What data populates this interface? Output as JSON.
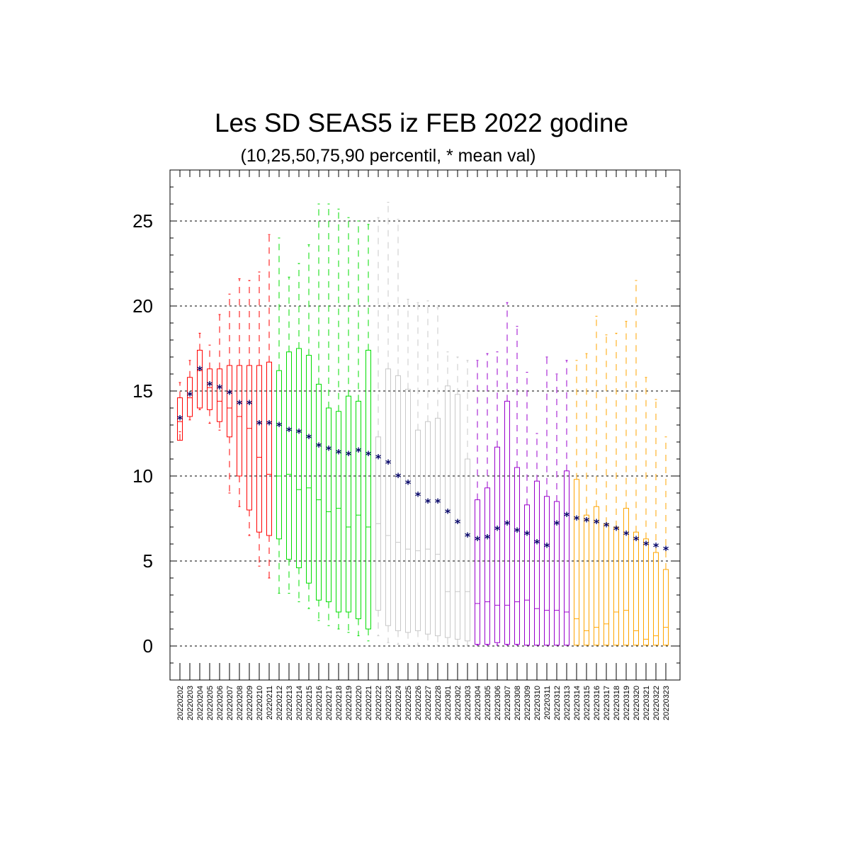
{
  "chart_data": {
    "type": "box",
    "title": "Les SD SEAS5 iz FEB 2022 godine",
    "subtitle": "(10,25,50,75,90 percentil, * mean val)",
    "xlabel": "",
    "ylabel": "",
    "ylim": [
      -2,
      28
    ],
    "yticks": [
      "0",
      "5",
      "10",
      "15",
      "20",
      "25"
    ],
    "grid": "horizontal-dashed",
    "mean_marker": "*",
    "mean_color": "#000066",
    "categories": [
      "20220202",
      "20220203",
      "20220204",
      "20220205",
      "20220206",
      "20220207",
      "20220208",
      "20220209",
      "20220210",
      "20220211",
      "20220212",
      "20220213",
      "20220214",
      "20220215",
      "20220216",
      "20220217",
      "20220218",
      "20220219",
      "20220220",
      "20220221",
      "20220222",
      "20220223",
      "20220224",
      "20220225",
      "20220226",
      "20220227",
      "20220228",
      "20220301",
      "20220302",
      "20220303",
      "20220304",
      "20220305",
      "20220306",
      "20220307",
      "20220308",
      "20220309",
      "20220310",
      "20220311",
      "20220312",
      "20220313",
      "20220314",
      "20220315",
      "20220316",
      "20220317",
      "20220318",
      "20220319",
      "20220320",
      "20220321",
      "20220322",
      "20220323"
    ],
    "colors": [
      "#ff0000",
      "#ff0000",
      "#ff0000",
      "#ff0000",
      "#ff0000",
      "#ff0000",
      "#ff0000",
      "#ff0000",
      "#ff0000",
      "#ff0000",
      "#00dd00",
      "#00dd00",
      "#00dd00",
      "#00dd00",
      "#00dd00",
      "#00dd00",
      "#00dd00",
      "#00dd00",
      "#00dd00",
      "#00dd00",
      "#c8c8c8",
      "#c8c8c8",
      "#c8c8c8",
      "#c8c8c8",
      "#c8c8c8",
      "#c8c8c8",
      "#c8c8c8",
      "#c8c8c8",
      "#c8c8c8",
      "#c8c8c8",
      "#9900cc",
      "#9900cc",
      "#9900cc",
      "#9900cc",
      "#9900cc",
      "#9900cc",
      "#9900cc",
      "#9900cc",
      "#9900cc",
      "#9900cc",
      "#ffa500",
      "#ffa500",
      "#ffa500",
      "#ffa500",
      "#ffa500",
      "#ffa500",
      "#ffa500",
      "#ffa500",
      "#ffa500",
      "#ffa500"
    ],
    "p10": [
      12.6,
      13.3,
      13.9,
      13.1,
      12.7,
      9.0,
      8.2,
      6.5,
      4.7,
      4.0,
      3.1,
      3.1,
      2.6,
      2.2,
      1.5,
      1.2,
      1.0,
      0.8,
      0.6,
      0.3,
      0.6,
      0.2,
      0.1,
      0.1,
      0.05,
      0.05,
      0.05,
      0.05,
      0.05,
      0.05,
      0.05,
      0.05,
      0.05,
      0.05,
      0.05,
      0.05,
      0.05,
      0.05,
      0.05,
      0.05,
      0.05,
      0.05,
      0.05,
      0.05,
      0.05,
      0.05,
      0.05,
      0.05,
      0.05,
      0.05
    ],
    "p25": [
      12.1,
      13.5,
      14.0,
      13.9,
      13.2,
      12.3,
      10.0,
      8.0,
      6.7,
      6.5,
      6.3,
      5.1,
      4.6,
      3.7,
      2.7,
      2.6,
      2.0,
      2.0,
      1.6,
      1.0,
      2.1,
      1.2,
      0.9,
      0.8,
      0.9,
      0.7,
      0.6,
      0.5,
      0.4,
      0.3,
      0.1,
      0.1,
      0.2,
      0.1,
      0.1,
      0.05,
      0.05,
      0.05,
      0.05,
      0.05,
      0.05,
      0.05,
      0.05,
      0.05,
      0.05,
      0.05,
      0.05,
      0.05,
      0.05,
      0.05
    ],
    "p50": [
      13.2,
      14.6,
      16.2,
      15.2,
      14.4,
      14.0,
      13.5,
      12.8,
      11.1,
      10.1,
      10.0,
      10.1,
      9.2,
      9.3,
      8.6,
      7.9,
      8.1,
      7.0,
      7.7,
      7.0,
      7.2,
      6.5,
      6.1,
      5.7,
      5.6,
      5.7,
      5.4,
      3.2,
      3.2,
      3.2,
      2.5,
      2.6,
      2.4,
      2.4,
      2.6,
      2.7,
      2.2,
      2.1,
      2.1,
      2.0,
      1.6,
      0.9,
      1.1,
      1.3,
      2.0,
      2.1,
      0.9,
      0.4,
      0.6,
      1.1
    ],
    "p75": [
      14.6,
      15.8,
      17.4,
      16.3,
      16.3,
      16.5,
      16.5,
      16.5,
      16.5,
      16.7,
      16.2,
      17.3,
      17.5,
      17.1,
      15.4,
      14.0,
      13.8,
      14.7,
      14.4,
      17.4,
      12.3,
      16.3,
      15.9,
      15.1,
      12.7,
      13.2,
      13.4,
      15.3,
      14.8,
      11.0,
      8.6,
      9.3,
      11.7,
      14.4,
      10.5,
      8.3,
      9.7,
      8.8,
      8.5,
      10.3,
      9.8,
      7.7,
      8.2,
      7.2,
      7.0,
      8.1,
      6.7,
      6.3,
      5.5,
      4.5
    ],
    "p90": [
      15.5,
      16.8,
      18.4,
      17.7,
      19.5,
      20.7,
      21.6,
      21.5,
      22.0,
      24.2,
      24.0,
      21.7,
      22.5,
      23.6,
      26.0,
      26.0,
      25.7,
      25.2,
      25.0,
      24.8,
      25.2,
      26.1,
      25.1,
      20.4,
      20.2,
      20.3,
      19.9,
      17.3,
      17.0,
      16.8,
      16.8,
      17.2,
      17.3,
      20.2,
      18.8,
      16.1,
      12.5,
      17.0,
      16.0,
      16.8,
      16.8,
      17.2,
      19.4,
      18.3,
      18.4,
      19.1,
      21.5,
      15.8,
      14.5,
      12.3
    ],
    "mean": [
      13.4,
      14.8,
      16.3,
      15.4,
      15.2,
      14.9,
      14.3,
      14.3,
      13.1,
      13.1,
      13.0,
      12.7,
      12.6,
      12.3,
      11.8,
      11.6,
      11.4,
      11.3,
      11.5,
      11.3,
      11.1,
      10.8,
      10.0,
      9.6,
      8.9,
      8.5,
      8.5,
      7.9,
      7.3,
      6.5,
      6.3,
      6.4,
      6.9,
      7.2,
      6.8,
      6.6,
      6.1,
      5.9,
      7.2,
      7.7,
      7.5,
      7.4,
      7.3,
      7.1,
      6.9,
      6.6,
      6.3,
      6.0,
      5.9,
      5.7
    ]
  }
}
